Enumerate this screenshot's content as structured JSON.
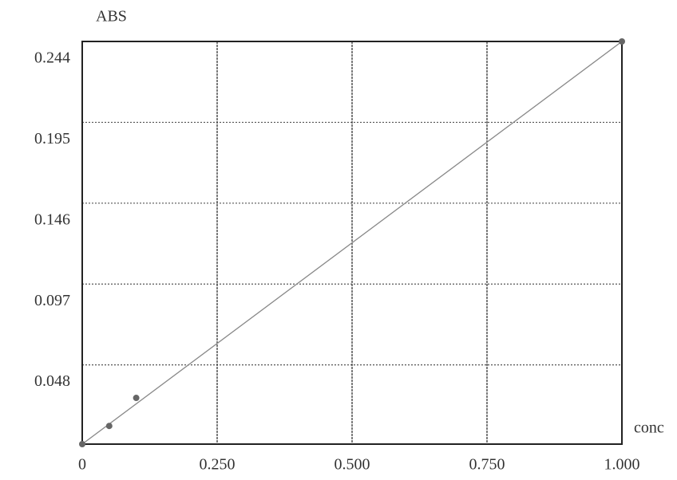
{
  "chart_data": {
    "type": "scatter",
    "x_label": "conc",
    "y_label": "ABS",
    "x": [
      0,
      0.05,
      0.1,
      1.0
    ],
    "values": [
      0,
      0.011,
      0.028,
      0.244
    ],
    "color": "#666666",
    "fit_line": {
      "x": [
        0,
        1.0
      ],
      "values": [
        0,
        0.244
      ],
      "color": "#888888"
    },
    "xlim": [
      0,
      1.0
    ],
    "ylim": [
      0,
      0.244
    ],
    "xticks": [
      {
        "value": 0,
        "label": "0"
      },
      {
        "value": 0.25,
        "label": "0.250"
      },
      {
        "value": 0.5,
        "label": "0.500"
      },
      {
        "value": 0.75,
        "label": "0.750"
      },
      {
        "value": 1.0,
        "label": "1.000"
      }
    ],
    "yticks": [
      0.048,
      0.097,
      0.146,
      0.195,
      0.244
    ],
    "grid": true
  }
}
